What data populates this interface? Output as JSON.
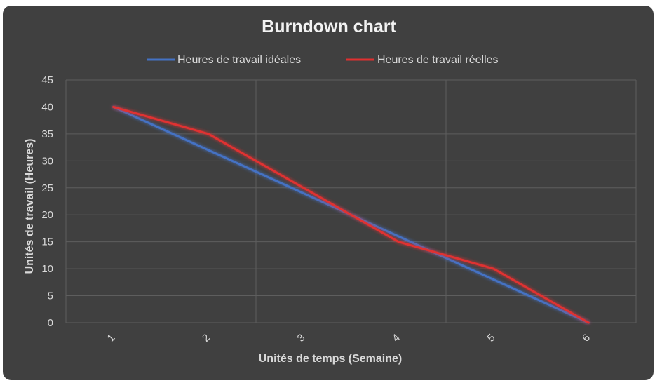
{
  "chart_data": {
    "type": "line",
    "title": "Burndown chart",
    "xlabel": "Unités de temps (Semaine)",
    "ylabel": "Unités de travail (Heures)",
    "categories": [
      "1",
      "2",
      "3",
      "4",
      "5",
      "6"
    ],
    "yticks": [
      "0",
      "5",
      "10",
      "15",
      "20",
      "25",
      "30",
      "35",
      "40",
      "45"
    ],
    "ylim": [
      0,
      45
    ],
    "grid": true,
    "legend_position": "top",
    "series": [
      {
        "name": "Heures de travail idéales",
        "color": "#4472c4",
        "values": [
          40,
          32,
          24,
          16,
          8,
          0
        ]
      },
      {
        "name": "Heures de travail réelles",
        "color": "#e03030",
        "values": [
          40,
          35,
          25,
          15,
          10,
          0
        ]
      }
    ]
  },
  "colors": {
    "panel_background": "#404040",
    "gridline": "#5e5e5e",
    "text": "#d9d9d9"
  }
}
